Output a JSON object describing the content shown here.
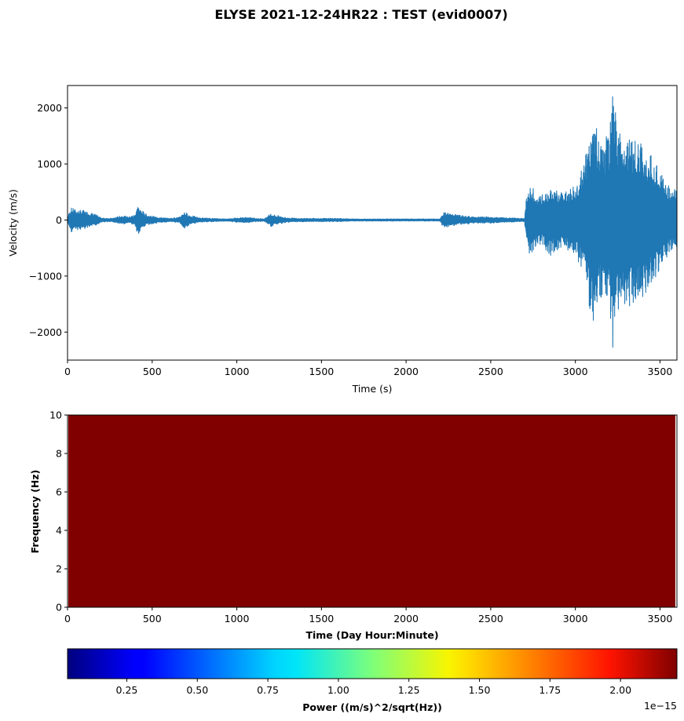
{
  "figure": {
    "title": "ELYSE 2021-12-24HR22 : TEST (evid0007)"
  },
  "chart_data": [
    {
      "type": "line",
      "xlabel": "Time (s)",
      "ylabel": "Velocity (m/s)",
      "xlim": [
        0,
        3600
      ],
      "ylim": [
        -2500,
        2400
      ],
      "xticks": [
        0,
        500,
        1000,
        1500,
        2000,
        2500,
        3000,
        3500
      ],
      "xtick_labels": [
        "0",
        "500",
        "1000",
        "1500",
        "2000",
        "2500",
        "3000",
        "3500"
      ],
      "yticks": [
        -2000,
        -1000,
        0,
        1000,
        2000
      ],
      "ytick_labels": [
        "−2000",
        "−1000",
        "0",
        "1000",
        "2000"
      ],
      "grid": false,
      "series": [
        {
          "color": "#1f77b4",
          "envelope_time": [
            0,
            20,
            60,
            100,
            160,
            200,
            260,
            320,
            360,
            400,
            410,
            430,
            470,
            520,
            600,
            660,
            690,
            720,
            780,
            860,
            940,
            1000,
            1060,
            1120,
            1160,
            1200,
            1240,
            1300,
            1400,
            1500,
            1600,
            1700,
            1800,
            1900,
            2000,
            2100,
            2200,
            2220,
            2260,
            2330,
            2400,
            2500,
            2600,
            2700,
            2710,
            2730,
            2760,
            2800,
            2850,
            2900,
            2950,
            3000,
            3050,
            3080,
            3100,
            3150,
            3200,
            3220,
            3250,
            3300,
            3350,
            3400,
            3450,
            3500,
            3550,
            3600
          ],
          "envelope_amplitude": [
            60,
            220,
            180,
            170,
            110,
            40,
            30,
            80,
            60,
            100,
            290,
            200,
            90,
            60,
            30,
            50,
            160,
            90,
            40,
            30,
            20,
            40,
            50,
            30,
            20,
            120,
            80,
            40,
            30,
            30,
            30,
            20,
            20,
            20,
            20,
            20,
            20,
            140,
            120,
            80,
            60,
            60,
            40,
            30,
            400,
            680,
            520,
            440,
            640,
            520,
            560,
            620,
            1000,
            1500,
            1900,
            1380,
            1550,
            2200,
            1700,
            1620,
            1450,
            1400,
            1150,
            870,
            620,
            520
          ],
          "peak_max": 2200,
          "peak_min": -2270
        }
      ]
    },
    {
      "type": "heatmap",
      "xlabel": "Time (Day Hour:Minute)",
      "ylabel": "Frequency (Hz)",
      "xlim": [
        0,
        3600
      ],
      "ylim": [
        0,
        10
      ],
      "xticks": [
        0,
        500,
        1000,
        1500,
        2000,
        2500,
        3000,
        3500
      ],
      "xtick_labels": [
        "0",
        "500",
        "1000",
        "1500",
        "2000",
        "2500",
        "3000",
        "3500"
      ],
      "yticks": [
        0,
        2,
        4,
        6,
        8,
        10
      ],
      "ytick_labels": [
        "0",
        "2",
        "4",
        "6",
        "8",
        "10"
      ],
      "fill_color": "#800000",
      "colormap": "jet",
      "colorbar": {
        "label": "Power ((m/s)^2/sqrt(Hz))",
        "range": [
          0.04,
          2.2
        ],
        "ticks": [
          0.25,
          0.5,
          0.75,
          1.0,
          1.25,
          1.5,
          1.75,
          2.0
        ],
        "tick_labels": [
          "0.25",
          "0.50",
          "0.75",
          "1.00",
          "1.25",
          "1.50",
          "1.75",
          "2.00"
        ],
        "offset_text": "1e−15"
      }
    }
  ]
}
